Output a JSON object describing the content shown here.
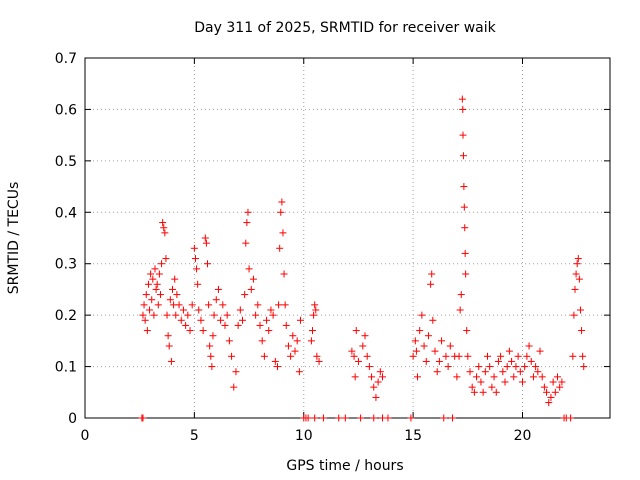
{
  "chart_data": {
    "type": "scatter",
    "title": "Day 311 of 2025, SRMTID for receiver waik",
    "xlabel": "GPS time / hours",
    "ylabel": "SRMTID / TECUs",
    "xlim": [
      0,
      24
    ],
    "ylim": [
      0,
      0.7
    ],
    "xticks": [
      0,
      5,
      10,
      15,
      20
    ],
    "xtick_labels": [
      "0",
      "5",
      "10",
      "15",
      "20"
    ],
    "yticks": [
      0,
      0.1,
      0.2,
      0.3,
      0.4,
      0.5,
      0.6,
      0.7
    ],
    "ytick_labels": [
      "0",
      "0.1",
      "0.2",
      "0.3",
      "0.4",
      "0.5",
      "0.6",
      "0.7"
    ],
    "grid": true,
    "marker": "plus",
    "color": "#ff0000",
    "series": [
      {
        "name": "SRMTID",
        "points": [
          [
            2.6,
            0.0
          ],
          [
            2.65,
            0.0
          ],
          [
            2.65,
            0.2
          ],
          [
            2.7,
            0.22
          ],
          [
            2.75,
            0.19
          ],
          [
            2.8,
            0.24
          ],
          [
            2.85,
            0.17
          ],
          [
            2.9,
            0.26
          ],
          [
            2.95,
            0.21
          ],
          [
            3.0,
            0.28
          ],
          [
            3.05,
            0.23
          ],
          [
            3.1,
            0.27
          ],
          [
            3.15,
            0.2
          ],
          [
            3.2,
            0.29
          ],
          [
            3.25,
            0.25
          ],
          [
            3.3,
            0.26
          ],
          [
            3.35,
            0.22
          ],
          [
            3.4,
            0.28
          ],
          [
            3.45,
            0.24
          ],
          [
            3.5,
            0.3
          ],
          [
            3.55,
            0.38
          ],
          [
            3.6,
            0.37
          ],
          [
            3.65,
            0.36
          ],
          [
            3.7,
            0.31
          ],
          [
            3.75,
            0.2
          ],
          [
            3.8,
            0.16
          ],
          [
            3.85,
            0.14
          ],
          [
            3.9,
            0.23
          ],
          [
            3.95,
            0.11
          ],
          [
            4.0,
            0.25
          ],
          [
            4.05,
            0.22
          ],
          [
            4.1,
            0.27
          ],
          [
            4.15,
            0.2
          ],
          [
            4.2,
            0.24
          ],
          [
            4.3,
            0.22
          ],
          [
            4.4,
            0.19
          ],
          [
            4.5,
            0.21
          ],
          [
            4.6,
            0.18
          ],
          [
            4.7,
            0.2
          ],
          [
            4.8,
            0.17
          ],
          [
            4.9,
            0.22
          ],
          [
            5.0,
            0.33
          ],
          [
            5.05,
            0.31
          ],
          [
            5.1,
            0.29
          ],
          [
            5.15,
            0.26
          ],
          [
            5.2,
            0.21
          ],
          [
            5.3,
            0.19
          ],
          [
            5.4,
            0.17
          ],
          [
            5.5,
            0.35
          ],
          [
            5.55,
            0.34
          ],
          [
            5.6,
            0.3
          ],
          [
            5.65,
            0.22
          ],
          [
            5.7,
            0.14
          ],
          [
            5.75,
            0.12
          ],
          [
            5.8,
            0.1
          ],
          [
            5.85,
            0.16
          ],
          [
            5.9,
            0.2
          ],
          [
            6.0,
            0.23
          ],
          [
            6.1,
            0.25
          ],
          [
            6.2,
            0.19
          ],
          [
            6.3,
            0.22
          ],
          [
            6.4,
            0.18
          ],
          [
            6.5,
            0.2
          ],
          [
            6.6,
            0.15
          ],
          [
            6.7,
            0.12
          ],
          [
            6.8,
            0.06
          ],
          [
            6.9,
            0.09
          ],
          [
            7.0,
            0.18
          ],
          [
            7.1,
            0.21
          ],
          [
            7.2,
            0.19
          ],
          [
            7.3,
            0.24
          ],
          [
            7.35,
            0.34
          ],
          [
            7.4,
            0.38
          ],
          [
            7.45,
            0.4
          ],
          [
            7.5,
            0.29
          ],
          [
            7.6,
            0.25
          ],
          [
            7.7,
            0.27
          ],
          [
            7.8,
            0.2
          ],
          [
            7.9,
            0.22
          ],
          [
            8.0,
            0.18
          ],
          [
            8.1,
            0.15
          ],
          [
            8.2,
            0.12
          ],
          [
            8.3,
            0.19
          ],
          [
            8.4,
            0.17
          ],
          [
            8.5,
            0.21
          ],
          [
            8.6,
            0.2
          ],
          [
            8.7,
            0.11
          ],
          [
            8.8,
            0.1
          ],
          [
            8.85,
            0.22
          ],
          [
            8.9,
            0.33
          ],
          [
            8.95,
            0.4
          ],
          [
            9.0,
            0.42
          ],
          [
            9.05,
            0.36
          ],
          [
            9.1,
            0.28
          ],
          [
            9.15,
            0.22
          ],
          [
            9.2,
            0.18
          ],
          [
            9.3,
            0.14
          ],
          [
            9.4,
            0.12
          ],
          [
            9.5,
            0.16
          ],
          [
            9.6,
            0.13
          ],
          [
            9.7,
            0.15
          ],
          [
            9.8,
            0.09
          ],
          [
            9.85,
            0.19
          ],
          [
            10.0,
            0.0
          ],
          [
            10.1,
            0.0
          ],
          [
            10.2,
            0.0
          ],
          [
            10.35,
            0.15
          ],
          [
            10.4,
            0.17
          ],
          [
            10.45,
            0.2
          ],
          [
            10.5,
            0.22
          ],
          [
            10.55,
            0.21
          ],
          [
            10.6,
            0.12
          ],
          [
            10.7,
            0.11
          ],
          [
            10.5,
            0.0
          ],
          [
            10.9,
            0.0
          ],
          [
            11.6,
            0.0
          ],
          [
            11.9,
            0.0
          ],
          [
            12.2,
            0.13
          ],
          [
            12.3,
            0.12
          ],
          [
            12.35,
            0.08
          ],
          [
            12.4,
            0.17
          ],
          [
            12.5,
            0.11
          ],
          [
            12.6,
            0.0
          ],
          [
            12.7,
            0.14
          ],
          [
            12.8,
            0.16
          ],
          [
            12.9,
            0.12
          ],
          [
            13.0,
            0.1
          ],
          [
            13.1,
            0.08
          ],
          [
            13.2,
            0.06
          ],
          [
            13.3,
            0.04
          ],
          [
            13.4,
            0.07
          ],
          [
            13.5,
            0.09
          ],
          [
            13.6,
            0.08
          ],
          [
            13.2,
            0.0
          ],
          [
            13.6,
            0.0
          ],
          [
            13.85,
            0.0
          ],
          [
            14.9,
            0.0
          ],
          [
            15.0,
            0.12
          ],
          [
            15.1,
            0.15
          ],
          [
            15.15,
            0.13
          ],
          [
            15.2,
            0.08
          ],
          [
            15.3,
            0.17
          ],
          [
            15.4,
            0.2
          ],
          [
            15.5,
            0.14
          ],
          [
            15.6,
            0.11
          ],
          [
            15.7,
            0.16
          ],
          [
            15.8,
            0.26
          ],
          [
            15.85,
            0.28
          ],
          [
            15.9,
            0.19
          ],
          [
            16.0,
            0.13
          ],
          [
            16.1,
            0.09
          ],
          [
            16.2,
            0.11
          ],
          [
            16.3,
            0.15
          ],
          [
            16.4,
            0.0
          ],
          [
            16.5,
            0.12
          ],
          [
            16.6,
            0.1
          ],
          [
            16.7,
            0.14
          ],
          [
            16.8,
            0.0
          ],
          [
            16.9,
            0.12
          ],
          [
            17.0,
            0.08
          ],
          [
            17.1,
            0.12
          ],
          [
            17.15,
            0.21
          ],
          [
            17.2,
            0.24
          ],
          [
            17.25,
            0.62
          ],
          [
            17.27,
            0.6
          ],
          [
            17.28,
            0.55
          ],
          [
            17.3,
            0.51
          ],
          [
            17.32,
            0.45
          ],
          [
            17.34,
            0.41
          ],
          [
            17.36,
            0.37
          ],
          [
            17.38,
            0.32
          ],
          [
            17.4,
            0.28
          ],
          [
            17.45,
            0.17
          ],
          [
            17.5,
            0.12
          ],
          [
            17.6,
            0.09
          ],
          [
            17.7,
            0.06
          ],
          [
            17.8,
            0.05
          ],
          [
            17.9,
            0.08
          ],
          [
            18.0,
            0.1
          ],
          [
            18.1,
            0.07
          ],
          [
            18.2,
            0.05
          ],
          [
            18.3,
            0.09
          ],
          [
            18.4,
            0.12
          ],
          [
            18.5,
            0.1
          ],
          [
            18.6,
            0.06
          ],
          [
            18.7,
            0.08
          ],
          [
            18.8,
            0.05
          ],
          [
            18.9,
            0.11
          ],
          [
            19.0,
            0.12
          ],
          [
            19.1,
            0.09
          ],
          [
            19.2,
            0.07
          ],
          [
            19.3,
            0.1
          ],
          [
            19.4,
            0.13
          ],
          [
            19.5,
            0.11
          ],
          [
            19.6,
            0.08
          ],
          [
            19.7,
            0.1
          ],
          [
            19.8,
            0.12
          ],
          [
            19.9,
            0.09
          ],
          [
            20.0,
            0.07
          ],
          [
            20.1,
            0.1
          ],
          [
            20.2,
            0.12
          ],
          [
            20.3,
            0.14
          ],
          [
            20.4,
            0.11
          ],
          [
            20.5,
            0.08
          ],
          [
            20.6,
            0.1
          ],
          [
            20.7,
            0.09
          ],
          [
            20.8,
            0.13
          ],
          [
            20.9,
            0.08
          ],
          [
            21.0,
            0.06
          ],
          [
            21.1,
            0.05
          ],
          [
            21.2,
            0.03
          ],
          [
            21.3,
            0.04
          ],
          [
            21.4,
            0.07
          ],
          [
            21.5,
            0.05
          ],
          [
            21.6,
            0.08
          ],
          [
            21.7,
            0.06
          ],
          [
            21.8,
            0.07
          ],
          [
            21.9,
            0.0
          ],
          [
            22.0,
            0.0
          ],
          [
            22.2,
            0.0
          ],
          [
            22.3,
            0.12
          ],
          [
            22.35,
            0.2
          ],
          [
            22.4,
            0.25
          ],
          [
            22.45,
            0.28
          ],
          [
            22.5,
            0.3
          ],
          [
            22.55,
            0.31
          ],
          [
            22.6,
            0.27
          ],
          [
            22.65,
            0.21
          ],
          [
            22.7,
            0.17
          ],
          [
            22.75,
            0.12
          ],
          [
            22.8,
            0.1
          ]
        ]
      }
    ]
  }
}
